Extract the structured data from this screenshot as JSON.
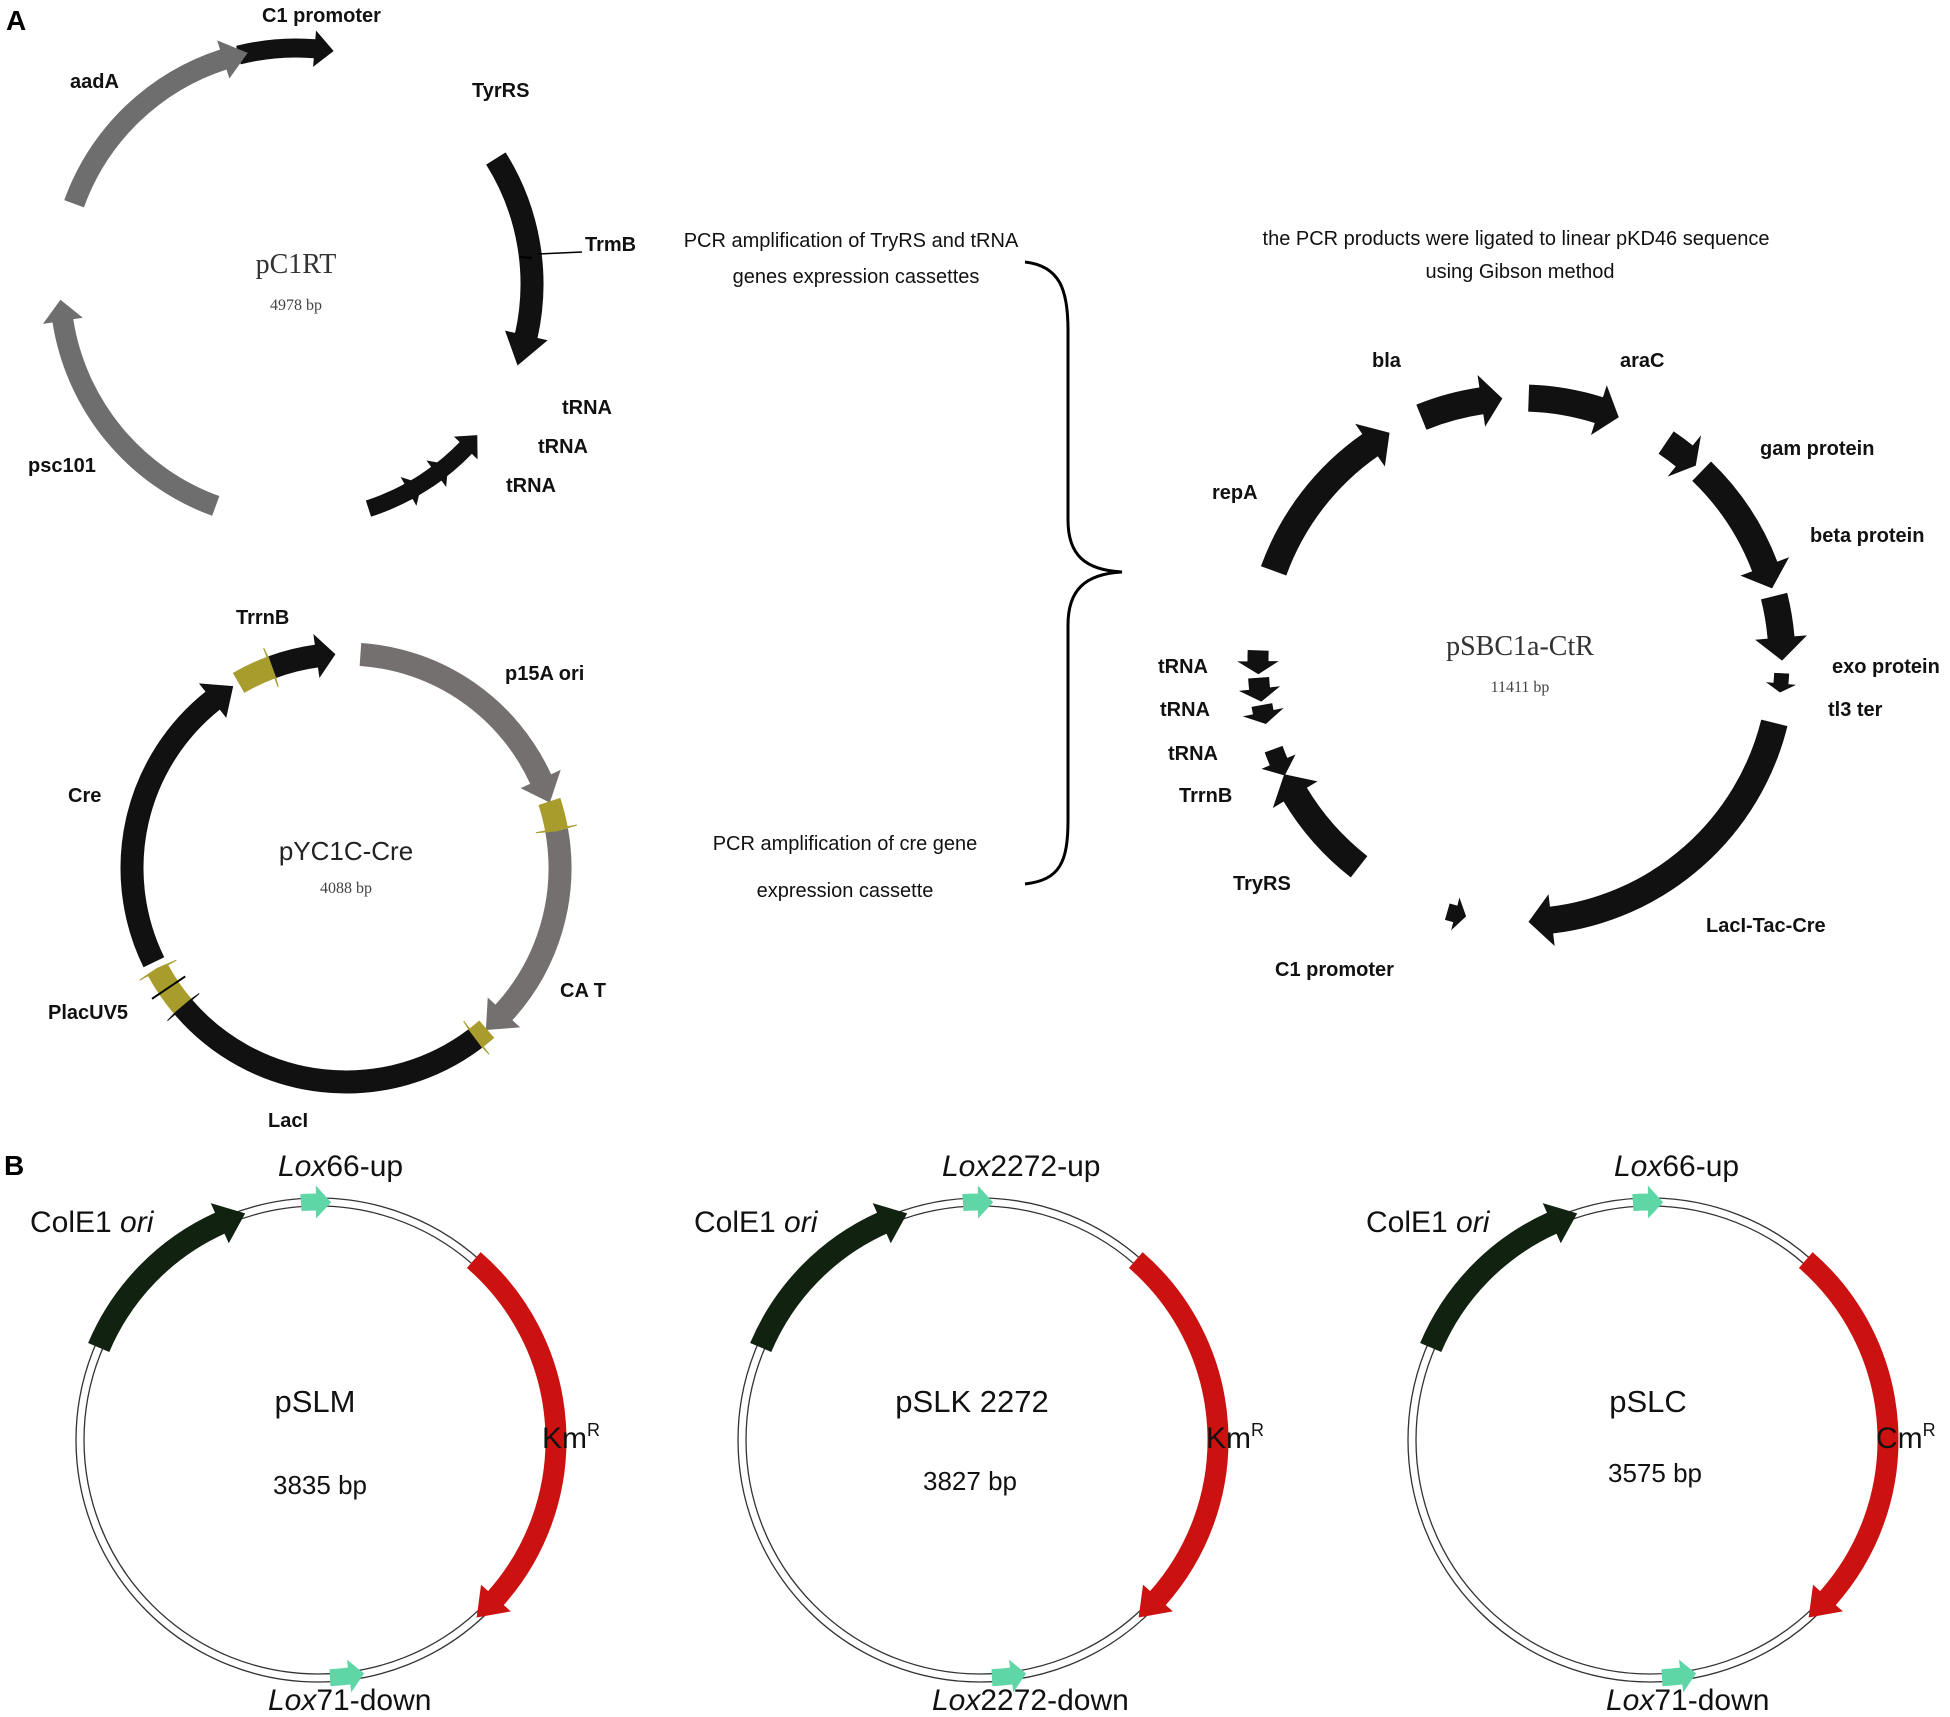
{
  "panels": {
    "a": "A",
    "b": "B"
  },
  "pc1rt": {
    "name": "pC1RT",
    "size": "4978 bp",
    "labels": {
      "c1_promoter": "C1 promoter",
      "tyrrs": "TyrRS",
      "trmb": "TrmB",
      "trna1": "tRNA",
      "trna2": "tRNA",
      "trna3": "tRNA",
      "psc101": "psc101",
      "aada": "aadA"
    },
    "colors": {
      "backbone": "#d8f26a",
      "dark": "#111111",
      "grey": "#6e6e6e"
    }
  },
  "pyc1c": {
    "name": "pYC1C-Cre",
    "size": "4088 bp",
    "labels": {
      "trrnb": "TrrnB",
      "p15a": "p15A ori",
      "cat": "CA T",
      "laci": "LacI",
      "placuv5": "PlacUV5",
      "cre": "Cre"
    },
    "colors": {
      "dark": "#111111",
      "grey": "#747070",
      "olive": "#a89d2c"
    }
  },
  "captions": {
    "pcr1_line1": "PCR amplification of TryRS and tRNA",
    "pcr1_line2": "genes expression cassettes",
    "pcr2_line1": "PCR amplification of cre gene",
    "pcr2_line2": "expression cassette",
    "gibson_line1": "the PCR products were ligated to linear pKD46  sequence",
    "gibson_line2": "using Gibson method"
  },
  "psbc": {
    "name": "pSBC1a-CtR",
    "size": "11411 bp",
    "labels": {
      "bla": "bla",
      "arac": "araC",
      "gam": "gam protein",
      "beta": "beta protein",
      "exo": "exo protein",
      "tl3": "tl3 ter",
      "laci_tac_cre": "LacI-Tac-Cre",
      "c1_promoter": "C1 promoter",
      "tryrs": "TryRS",
      "trrnb": "TrrnB",
      "trna1": "tRNA",
      "trna2": "tRNA",
      "trna3": "tRNA",
      "repa": "repA"
    },
    "colors": {
      "backbone": "#f3f1b8",
      "dark": "#111111"
    }
  },
  "panel_b": [
    {
      "name": "pSLM",
      "size": "3835 bp",
      "ori_italic": "ori",
      "ori_text": "ColE1 ",
      "up_italic": "Lox",
      "up_text": "66-up",
      "down_italic": "Lox",
      "down_text": "71-down",
      "marker": "Km",
      "marker_sup": "R"
    },
    {
      "name": "pSLK 2272",
      "size": "3827 bp",
      "ori_italic": "ori",
      "ori_text": "ColE1 ",
      "up_italic": "Lox",
      "up_text": "2272-up",
      "down_italic": "Lox",
      "down_text": "2272-down",
      "marker": "Km",
      "marker_sup": "R"
    },
    {
      "name": "pSLC",
      "size": "3575 bp",
      "ori_italic": "ori",
      "ori_text": "ColE1 ",
      "up_italic": "Lox",
      "up_text": "66-up",
      "down_italic": "Lox",
      "down_text": "71-down",
      "marker": "Cm",
      "marker_sup": "R"
    }
  ],
  "panel_b_colors": {
    "ori": "#112211",
    "lox": "#5fd6a6",
    "marker": "#cc1111"
  }
}
